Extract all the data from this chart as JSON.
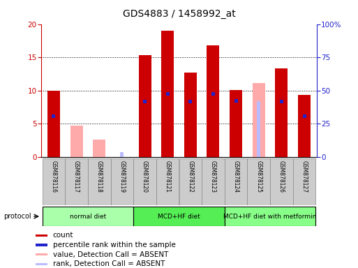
{
  "title": "GDS4883 / 1458992_at",
  "samples": [
    "GSM878116",
    "GSM878117",
    "GSM878118",
    "GSM878119",
    "GSM878120",
    "GSM878121",
    "GSM878122",
    "GSM878123",
    "GSM878124",
    "GSM878125",
    "GSM878126",
    "GSM878127"
  ],
  "count_values": [
    10.0,
    0,
    0,
    0,
    15.3,
    19.0,
    12.7,
    16.8,
    10.1,
    0,
    13.3,
    9.3
  ],
  "percentile_values": [
    6.1,
    0,
    0,
    0,
    8.3,
    9.5,
    8.3,
    9.5,
    8.4,
    0,
    8.3,
    6.1
  ],
  "absent_value_values": [
    0,
    4.7,
    2.6,
    0,
    0,
    0,
    0,
    0,
    0,
    11.1,
    0,
    0
  ],
  "absent_rank_values": [
    0,
    0,
    0,
    0.7,
    0,
    0,
    0,
    0,
    0,
    8.4,
    0,
    0
  ],
  "protocols": [
    {
      "label": "normal diet",
      "start": 0,
      "end": 4,
      "color": "#aaffaa"
    },
    {
      "label": "MCD+HF diet",
      "start": 4,
      "end": 8,
      "color": "#55ee55"
    },
    {
      "label": "MCD+HF diet with metformin",
      "start": 8,
      "end": 12,
      "color": "#88ff88"
    }
  ],
  "ylim_left": [
    0,
    20
  ],
  "ylim_right": [
    0,
    100
  ],
  "yticks_left": [
    0,
    5,
    10,
    15,
    20
  ],
  "yticks_right": [
    0,
    25,
    50,
    75,
    100
  ],
  "ytick_labels_right": [
    "0",
    "25",
    "50",
    "75",
    "100%"
  ],
  "color_count": "#cc0000",
  "color_percentile": "#2222cc",
  "color_absent_value": "#ffaaaa",
  "color_absent_rank": "#bbbbff",
  "bar_width": 0.55,
  "plot_bg": "#ffffff",
  "grid_color": "#000000",
  "left_axis_color": "#cc0000",
  "right_axis_color": "#2222cc",
  "sample_box_color": "#cccccc"
}
